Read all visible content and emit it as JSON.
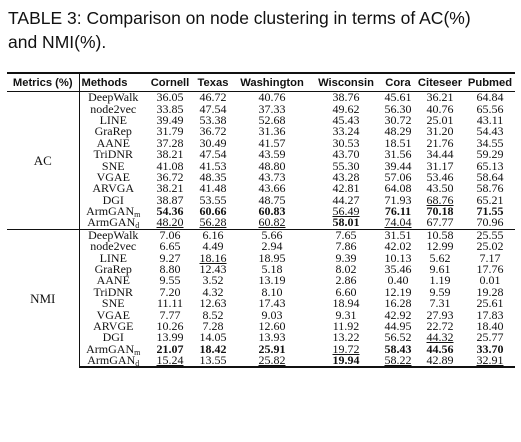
{
  "caption": {
    "line1": "TABLE 3: Comparison on node clustering in terms of AC(%)",
    "line2": "and NMI(%)."
  },
  "table": {
    "headers": [
      "Metrics (%)",
      "Methods",
      "Cornell",
      "Texas",
      "Washington",
      "Wisconsin",
      "Cora",
      "Citeseer",
      "Pubmed"
    ],
    "groups": [
      {
        "metric": "AC",
        "rows": [
          {
            "method": "DeepWalk",
            "values": [
              "36.05",
              "46.72",
              "40.76",
              "38.76",
              "45.61",
              "36.21",
              "64.84"
            ]
          },
          {
            "method": "node2vec",
            "values": [
              "33.85",
              "47.54",
              "37.33",
              "49.62",
              "56.30",
              "40.76",
              "65.56"
            ]
          },
          {
            "method": "LINE",
            "values": [
              "39.49",
              "53.38",
              "52.68",
              "45.43",
              "30.72",
              "25.01",
              "43.11"
            ]
          },
          {
            "method": "GraRep",
            "values": [
              "31.79",
              "36.72",
              "31.36",
              "33.24",
              "48.29",
              "31.20",
              "54.43"
            ]
          },
          {
            "method": "AANE",
            "values": [
              "37.28",
              "30.49",
              "41.57",
              "30.53",
              "18.51",
              "21.76",
              "34.55"
            ]
          },
          {
            "method": "TriDNR",
            "values": [
              "38.21",
              "47.54",
              "43.59",
              "43.70",
              "31.56",
              "34.44",
              "59.29"
            ]
          },
          {
            "method": "SNE",
            "values": [
              "41.08",
              "41.53",
              "48.80",
              "55.30",
              "39.44",
              "31.17",
              "65.13"
            ]
          },
          {
            "method": "VGAE",
            "values": [
              "36.72",
              "48.35",
              "43.73",
              "43.28",
              "57.06",
              "53.46",
              "58.64"
            ]
          },
          {
            "method": "ARVGA",
            "values": [
              "38.21",
              "41.48",
              "43.66",
              "42.81",
              "64.08",
              "43.50",
              "58.76"
            ]
          },
          {
            "method": "DGI",
            "values": [
              "38.87",
              "53.55",
              "48.75",
              "44.27",
              "71.93",
              "68.76",
              "65.21"
            ]
          },
          {
            "method": "ArmGAN",
            "method_sub": "m",
            "values": [
              "54.36",
              "60.66",
              "60.83",
              "56.49",
              "76.11",
              "70.18",
              "71.55"
            ]
          },
          {
            "method": "ArmGAN",
            "method_sub": "d",
            "values": [
              "48.20",
              "56.28",
              "60.82",
              "58.01",
              "74.04",
              "67.77",
              "70.96"
            ]
          }
        ]
      },
      {
        "metric": "NMI",
        "rows": [
          {
            "method": "DeepWalk",
            "values": [
              "7.06",
              "6.16",
              "5.66",
              "7.65",
              "31.51",
              "10.58",
              "25.55"
            ]
          },
          {
            "method": "node2vec",
            "values": [
              "6.65",
              "4.49",
              "2.94",
              "7.86",
              "42.02",
              "12.99",
              "25.02"
            ]
          },
          {
            "method": "LINE",
            "values": [
              "9.27",
              "18.16",
              "18.95",
              "9.39",
              "10.13",
              "5.62",
              "7.17"
            ]
          },
          {
            "method": "GraRep",
            "values": [
              "8.80",
              "12.43",
              "5.18",
              "8.02",
              "35.46",
              "9.61",
              "17.76"
            ]
          },
          {
            "method": "AANE",
            "values": [
              "9.55",
              "3.52",
              "13.19",
              "2.86",
              "0.40",
              "1.19",
              "0.01"
            ]
          },
          {
            "method": "TriDNR",
            "values": [
              "7.20",
              "4.32",
              "8.10",
              "6.60",
              "12.19",
              "9.59",
              "19.28"
            ]
          },
          {
            "method": "SNE",
            "values": [
              "11.11",
              "12.63",
              "17.43",
              "18.94",
              "16.28",
              "7.31",
              "25.61"
            ]
          },
          {
            "method": "VGAE",
            "values": [
              "7.77",
              "8.52",
              "9.03",
              "9.31",
              "42.92",
              "27.93",
              "17.83"
            ]
          },
          {
            "method": "ARVGE",
            "values": [
              "10.26",
              "7.28",
              "12.60",
              "11.92",
              "44.95",
              "22.72",
              "18.40"
            ]
          },
          {
            "method": "DGI",
            "values": [
              "13.99",
              "14.05",
              "13.93",
              "13.22",
              "56.52",
              "44.32",
              "25.77"
            ]
          },
          {
            "method": "ArmGAN",
            "method_sub": "m",
            "values": [
              "21.07",
              "18.42",
              "25.91",
              "19.72",
              "58.43",
              "44.56",
              "33.70"
            ]
          },
          {
            "method": "ArmGAN",
            "method_sub": "d",
            "values": [
              "15.24",
              "13.55",
              "25.82",
              "19.94",
              "58.22",
              "42.89",
              "32.91"
            ]
          }
        ]
      }
    ]
  }
}
